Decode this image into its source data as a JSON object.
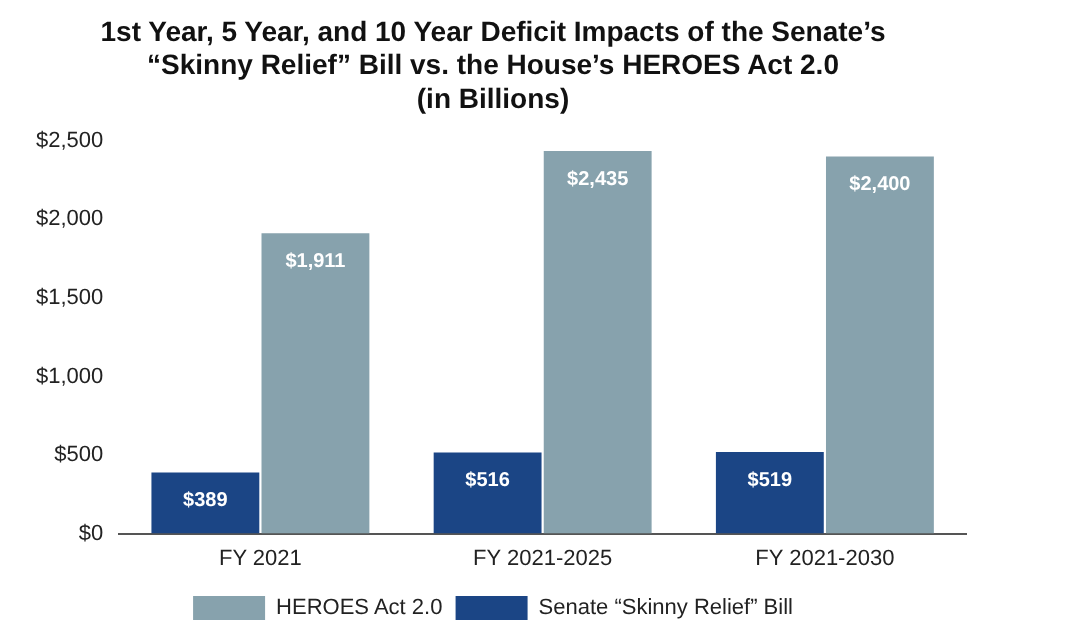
{
  "chart_data": {
    "type": "bar",
    "title": [
      "1st Year, 5 Year, and 10 Year Deficit Impacts of the Senate’s",
      "“Skinny Relief” Bill vs. the House’s HEROES Act 2.0",
      "(in Billions)"
    ],
    "categories": [
      "FY 2021",
      "FY 2021-2025",
      "FY 2021-2030"
    ],
    "series": [
      {
        "name": "Senate “Skinny Relief” Bill",
        "color": "#1b4585",
        "values": [
          389,
          516,
          519
        ],
        "value_labels": [
          "$389",
          "$516",
          "$519"
        ]
      },
      {
        "name": "HEROES Act 2.0",
        "color": "#87a2ad",
        "values": [
          1911,
          2435,
          2400
        ],
        "value_labels": [
          "$1,911",
          "$2,435",
          "$2,400"
        ]
      }
    ],
    "ylim": [
      0,
      2500
    ],
    "yticks": [
      {
        "value": 0,
        "label": "$0"
      },
      {
        "value": 500,
        "label": "$500"
      },
      {
        "value": 1000,
        "label": "$1,000"
      },
      {
        "value": 1500,
        "label": "$1,500"
      },
      {
        "value": 2000,
        "label": "$2,000"
      },
      {
        "value": 2500,
        "label": "$2,500"
      }
    ],
    "grid": false,
    "legend": "bottom"
  }
}
